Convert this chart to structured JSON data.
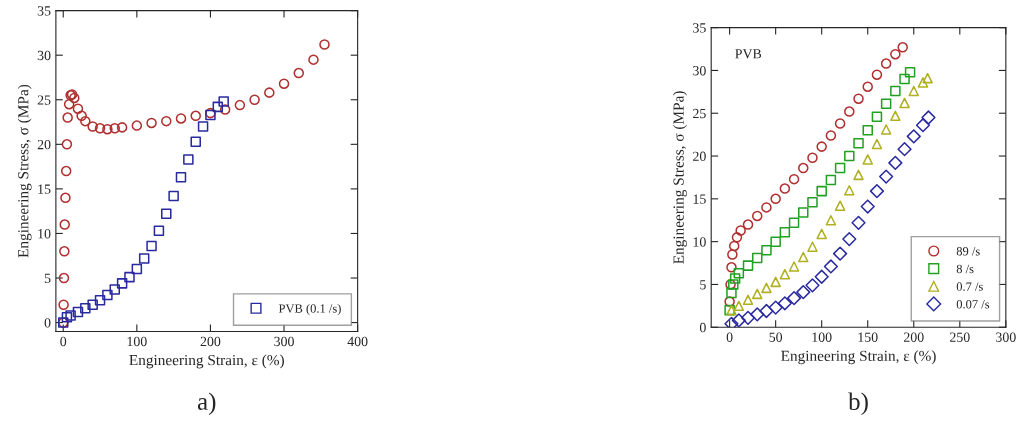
{
  "chart_data": [
    {
      "type": "scatter",
      "xlabel": "Engineering Strain, ε (%)",
      "ylabel": "Engineering Stress, σ (MPa)",
      "xlim": [
        -10,
        400
      ],
      "ylim": [
        -1,
        35
      ],
      "xticks": [
        0,
        100,
        200,
        300,
        400
      ],
      "yticks": [
        0,
        5,
        10,
        15,
        20,
        25,
        30,
        35
      ],
      "grid": false,
      "legend": "bottom right",
      "annotations": [
        "a)"
      ],
      "series": [
        {
          "color": "#b03030",
          "marker": "circle",
          "x": [
            0,
            0.5,
            1,
            1.5,
            2,
            3,
            4,
            5,
            6,
            8,
            10,
            12,
            15,
            20,
            25,
            30,
            40,
            50,
            60,
            70,
            80,
            100,
            120,
            140,
            160,
            180,
            200,
            220,
            240,
            260,
            280,
            300,
            320,
            340,
            355
          ],
          "values": [
            0,
            2,
            5,
            8,
            11,
            14,
            17,
            20,
            23,
            24.5,
            25.5,
            25.6,
            25.2,
            24,
            23.2,
            22.6,
            22,
            21.8,
            21.7,
            21.8,
            21.9,
            22.1,
            22.4,
            22.6,
            22.9,
            23.2,
            23.5,
            23.9,
            24.4,
            25,
            25.8,
            26.8,
            28,
            29.5,
            31.2
          ]
        },
        {
          "name": "PVB (0.1 /s)",
          "color": "#2a2aa0",
          "marker": "square",
          "x": [
            0,
            5,
            10,
            20,
            30,
            40,
            50,
            60,
            70,
            80,
            90,
            100,
            110,
            120,
            130,
            140,
            150,
            160,
            170,
            180,
            190,
            200,
            210,
            218
          ],
          "values": [
            0,
            0.6,
            0.8,
            1.2,
            1.6,
            2.0,
            2.5,
            3.1,
            3.7,
            4.4,
            5.1,
            6.0,
            7.2,
            8.6,
            10.3,
            12.2,
            14.2,
            16.3,
            18.3,
            20.3,
            22.0,
            23.3,
            24.2,
            24.8
          ]
        }
      ]
    },
    {
      "type": "scatter",
      "title": "PVB",
      "xlabel": "Engineering Strain, ε (%)",
      "ylabel": "Engineering Stress, σ (MPa)",
      "xlim": [
        -20,
        300
      ],
      "ylim": [
        0,
        35
      ],
      "xticks": [
        0,
        50,
        100,
        150,
        200,
        250,
        300
      ],
      "yticks": [
        0,
        5,
        10,
        15,
        20,
        25,
        30,
        35
      ],
      "grid": false,
      "legend": "bottom right",
      "annotations": [
        "b)"
      ],
      "series": [
        {
          "name": "89 /s",
          "color": "#b03030",
          "marker": "circle",
          "x": [
            0,
            1,
            2,
            3,
            5,
            8,
            12,
            20,
            30,
            40,
            50,
            60,
            70,
            80,
            90,
            100,
            110,
            120,
            130,
            140,
            150,
            160,
            170,
            180,
            188
          ],
          "values": [
            3,
            5,
            7,
            8.5,
            9.5,
            10.5,
            11.3,
            12,
            13,
            14,
            15,
            16.2,
            17.3,
            18.6,
            19.8,
            21.1,
            22.4,
            23.8,
            25.2,
            26.7,
            28.1,
            29.5,
            30.8,
            31.9,
            32.7
          ]
        },
        {
          "name": "8 /s",
          "color": "#22a022",
          "marker": "square",
          "x": [
            0,
            1,
            2,
            4,
            6,
            10,
            20,
            30,
            40,
            50,
            60,
            70,
            80,
            90,
            100,
            110,
            120,
            130,
            140,
            150,
            160,
            170,
            180,
            190,
            196
          ],
          "values": [
            2,
            null,
            4,
            5,
            5.7,
            6.3,
            7.2,
            8.1,
            9,
            10,
            11.1,
            12.2,
            13.4,
            14.6,
            15.9,
            17.2,
            18.6,
            20,
            21.5,
            23,
            24.6,
            26.1,
            27.6,
            29,
            29.8
          ]
        },
        {
          "name": "0.7 /s",
          "color": "#b0b020",
          "marker": "triangle",
          "x": [
            2,
            10,
            20,
            30,
            40,
            50,
            60,
            70,
            80,
            90,
            100,
            110,
            120,
            130,
            140,
            150,
            160,
            170,
            180,
            190,
            200,
            210,
            215
          ],
          "values": [
            2,
            2.5,
            3.2,
            3.9,
            4.6,
            5.3,
            6.2,
            7.1,
            8.2,
            9.4,
            10.9,
            12.5,
            14.2,
            16,
            17.8,
            19.6,
            21.4,
            23.1,
            24.7,
            26.2,
            27.6,
            28.6,
            29.1
          ]
        },
        {
          "name": "0.07 /s",
          "color": "#2a2aa0",
          "marker": "diamond",
          "x": [
            2,
            10,
            20,
            30,
            40,
            50,
            60,
            70,
            80,
            90,
            100,
            110,
            120,
            130,
            140,
            150,
            160,
            170,
            180,
            190,
            200,
            210,
            216
          ],
          "values": [
            0.4,
            0.8,
            1.1,
            1.5,
            1.9,
            2.3,
            2.8,
            3.4,
            4.1,
            4.9,
            5.9,
            7.1,
            8.6,
            10.3,
            12.2,
            14.1,
            15.9,
            17.6,
            19.2,
            20.8,
            22.3,
            23.6,
            24.5
          ]
        }
      ]
    }
  ]
}
